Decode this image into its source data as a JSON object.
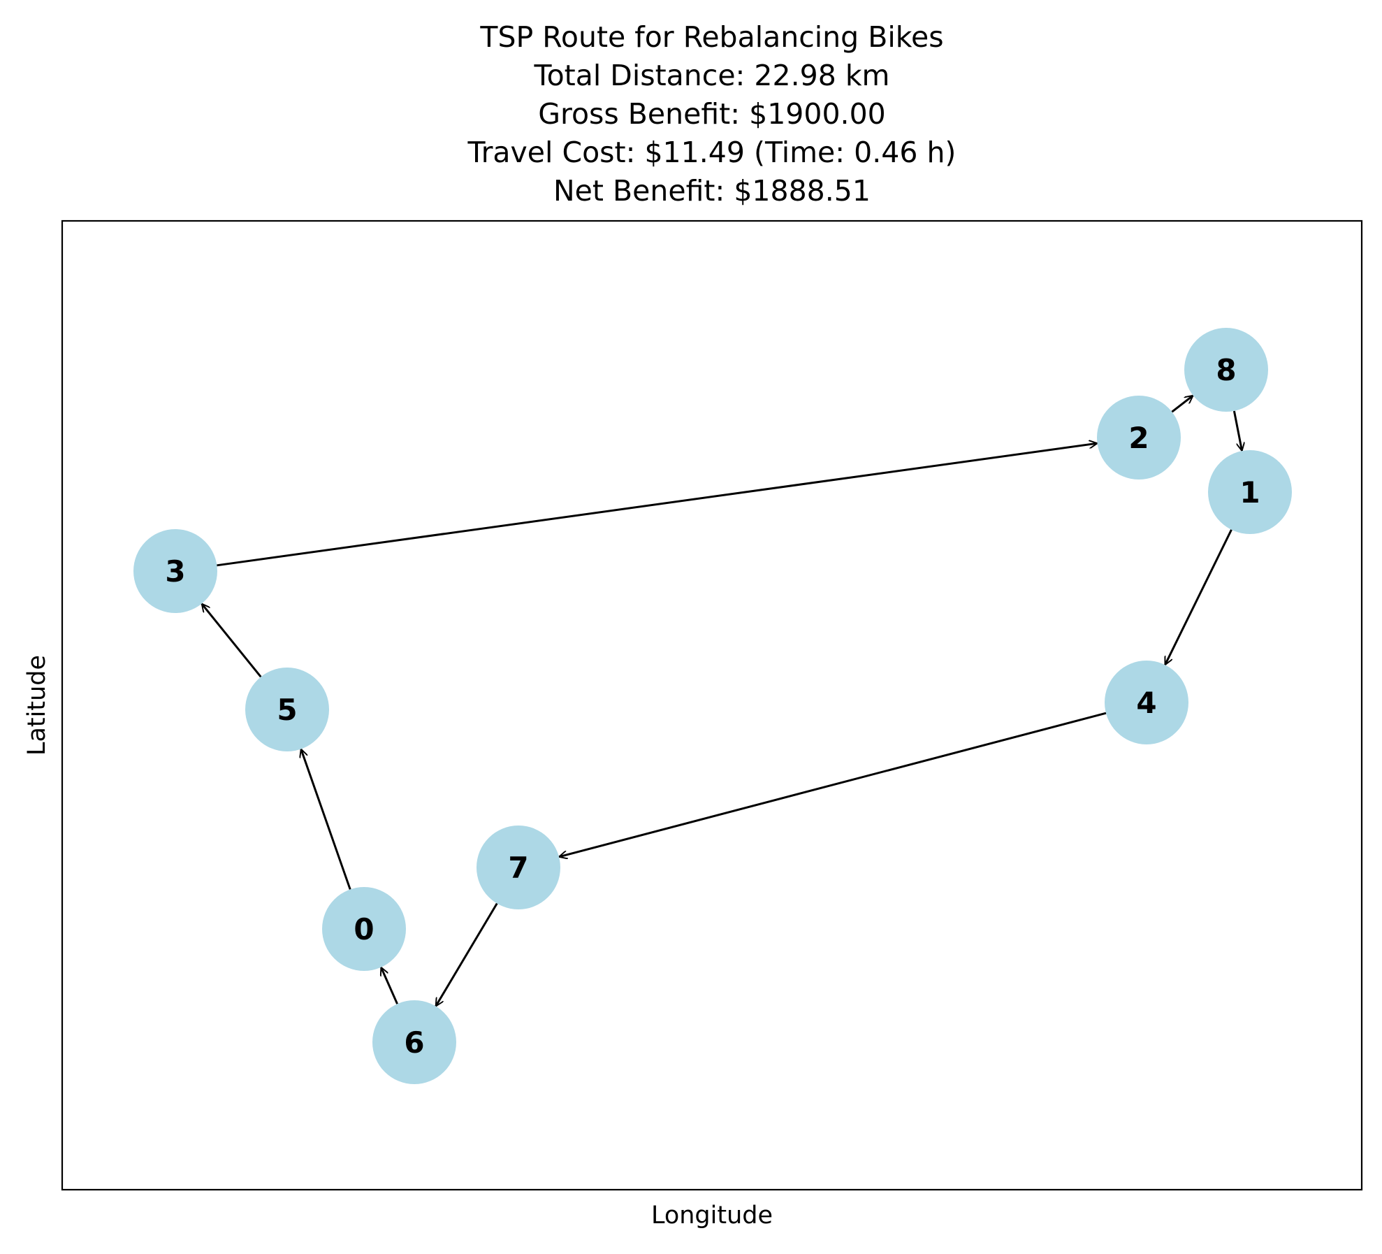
{
  "figure": {
    "title_lines": [
      "TSP Route for Rebalancing Bikes",
      "Total Distance: 22.98 km",
      "Gross Benefit: $1900.00",
      "Travel Cost: $11.49 (Time: 0.46 h)",
      "Net Benefit: $1888.51"
    ],
    "xlabel": "Longitude",
    "ylabel": "Latitude",
    "colors": {
      "node_fill": "#add8e6",
      "edge": "#000000",
      "frame": "#000000"
    }
  },
  "graph": {
    "type": "directed-route",
    "nodes": [
      {
        "id": "0",
        "label": "0"
      },
      {
        "id": "1",
        "label": "1"
      },
      {
        "id": "2",
        "label": "2"
      },
      {
        "id": "3",
        "label": "3"
      },
      {
        "id": "4",
        "label": "4"
      },
      {
        "id": "5",
        "label": "5"
      },
      {
        "id": "6",
        "label": "6"
      },
      {
        "id": "7",
        "label": "7"
      },
      {
        "id": "8",
        "label": "8"
      }
    ],
    "route": [
      "3",
      "2",
      "8",
      "1",
      "4",
      "7",
      "6",
      "0",
      "5",
      "3"
    ]
  }
}
